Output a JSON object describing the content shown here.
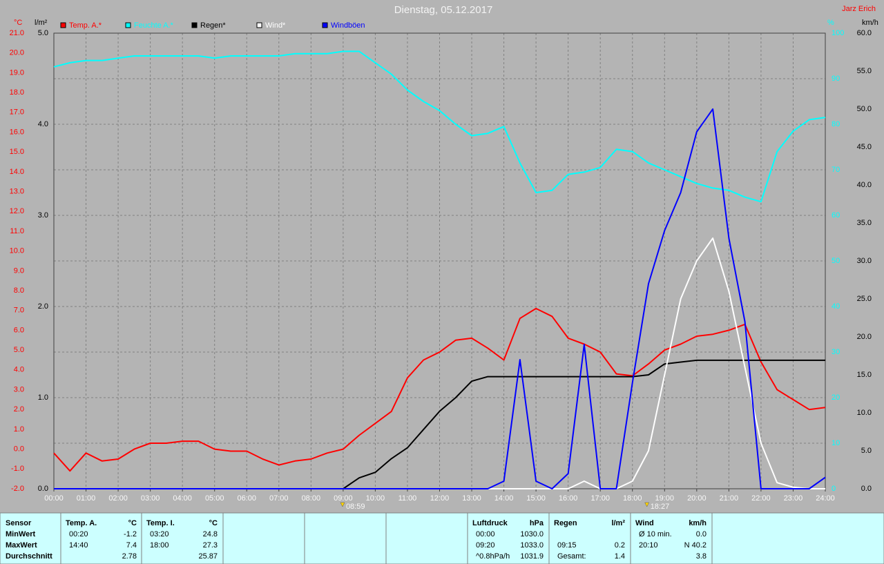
{
  "chart_data": {
    "type": "line",
    "title": "Dienstag, 05.12.2017",
    "author": "Jarz Erich",
    "grid": true,
    "x": [
      0,
      0.5,
      1,
      1.5,
      2,
      2.5,
      3,
      3.5,
      4,
      4.5,
      5,
      5.5,
      6,
      6.5,
      7,
      7.5,
      8,
      8.5,
      9,
      9.5,
      10,
      10.5,
      11,
      11.5,
      12,
      12.5,
      13,
      13.5,
      14,
      14.5,
      15,
      15.5,
      16,
      16.5,
      17,
      17.5,
      18,
      18.5,
      19,
      19.5,
      20,
      20.5,
      21,
      21.5,
      22,
      22.5,
      23,
      23.5,
      24
    ],
    "xlim": [
      0,
      24
    ],
    "xticks": [
      {
        "value": 0,
        "label": "00:00"
      },
      {
        "value": 1,
        "label": "01:00"
      },
      {
        "value": 2,
        "label": "02:00"
      },
      {
        "value": 3,
        "label": "03:00"
      },
      {
        "value": 4,
        "label": "04:00"
      },
      {
        "value": 5,
        "label": "05:00"
      },
      {
        "value": 6,
        "label": "06:00"
      },
      {
        "value": 7,
        "label": "07:00"
      },
      {
        "value": 8,
        "label": "08:00"
      },
      {
        "value": 9,
        "label": "09:00"
      },
      {
        "value": 10,
        "label": "10:00"
      },
      {
        "value": 11,
        "label": "11:00"
      },
      {
        "value": 12,
        "label": "12:00"
      },
      {
        "value": 13,
        "label": "13:00"
      },
      {
        "value": 14,
        "label": "14:00"
      },
      {
        "value": 15,
        "label": "15:00"
      },
      {
        "value": 16,
        "label": "16:00"
      },
      {
        "value": 17,
        "label": "17:00"
      },
      {
        "value": 18,
        "label": "18:00"
      },
      {
        "value": 19,
        "label": "19:00"
      },
      {
        "value": 20,
        "label": "20:00"
      },
      {
        "value": 21,
        "label": "21:00"
      },
      {
        "value": 22,
        "label": "22:00"
      },
      {
        "value": 23,
        "label": "23:00"
      },
      {
        "value": 24,
        "label": "24:00"
      }
    ],
    "y_axes": [
      {
        "label": "°C",
        "color": "#ff0000",
        "lim": [
          -2,
          21
        ],
        "ticks": [
          {
            "value": -2,
            "label": "-2.0"
          },
          {
            "value": -1,
            "label": "-1.0"
          },
          {
            "value": 0,
            "label": "0.0"
          },
          {
            "value": 1,
            "label": "1.0"
          },
          {
            "value": 2,
            "label": "2.0"
          },
          {
            "value": 3,
            "label": "3.0"
          },
          {
            "value": 4,
            "label": "4.0"
          },
          {
            "value": 5,
            "label": "5.0"
          },
          {
            "value": 6,
            "label": "6.0"
          },
          {
            "value": 7,
            "label": "7.0"
          },
          {
            "value": 8,
            "label": "8.0"
          },
          {
            "value": 9,
            "label": "9.0"
          },
          {
            "value": 10,
            "label": "10.0"
          },
          {
            "value": 11,
            "label": "11.0"
          },
          {
            "value": 12,
            "label": "12.0"
          },
          {
            "value": 13,
            "label": "13.0"
          },
          {
            "value": 14,
            "label": "14.0"
          },
          {
            "value": 15,
            "label": "15.0"
          },
          {
            "value": 16,
            "label": "16.0"
          },
          {
            "value": 17,
            "label": "17.0"
          },
          {
            "value": 18,
            "label": "18.0"
          },
          {
            "value": 19,
            "label": "19.0"
          },
          {
            "value": 20,
            "label": "20.0"
          },
          {
            "value": 21,
            "label": "21.0"
          }
        ]
      },
      {
        "label": "l/m²",
        "color": "#000000",
        "lim": [
          0,
          5
        ],
        "ticks": [
          {
            "value": 0,
            "label": "0.0"
          },
          {
            "value": 1,
            "label": "1.0"
          },
          {
            "value": 2,
            "label": "2.0"
          },
          {
            "value": 3,
            "label": "3.0"
          },
          {
            "value": 4,
            "label": "4.0"
          },
          {
            "value": 5,
            "label": "5.0"
          }
        ]
      },
      {
        "label": "%",
        "color": "#00ffff",
        "lim": [
          0,
          100
        ],
        "ticks": [
          0,
          10,
          20,
          30,
          40,
          50,
          60,
          70,
          80,
          90,
          100
        ]
      },
      {
        "label": "km/h",
        "color": "#000000",
        "lim": [
          0,
          60
        ],
        "ticks": [
          {
            "value": 0,
            "label": "0.0"
          },
          {
            "value": 5,
            "label": "5.0"
          },
          {
            "value": 10,
            "label": "10.0"
          },
          {
            "value": 15,
            "label": "15.0"
          },
          {
            "value": 20,
            "label": "20.0"
          },
          {
            "value": 25,
            "label": "25.0"
          },
          {
            "value": 30,
            "label": "30.0"
          },
          {
            "value": 35,
            "label": "35.0"
          },
          {
            "value": 40,
            "label": "40.0"
          },
          {
            "value": 45,
            "label": "45.0"
          },
          {
            "value": 50,
            "label": "50.0"
          },
          {
            "value": 55,
            "label": "55.0"
          },
          {
            "value": 60,
            "label": "60.0"
          }
        ]
      }
    ],
    "series": [
      {
        "name": "Temp. A.*",
        "color": "#ff0000",
        "axis": 0,
        "values": [
          -0.2,
          -1.1,
          -0.2,
          -0.6,
          -0.5,
          0.0,
          0.3,
          0.3,
          0.4,
          0.4,
          0.0,
          -0.1,
          -0.1,
          -0.5,
          -0.8,
          -0.6,
          -0.5,
          -0.2,
          0.0,
          0.7,
          1.3,
          1.9,
          3.6,
          4.5,
          4.9,
          5.5,
          5.6,
          5.1,
          4.5,
          6.6,
          7.1,
          6.7,
          5.6,
          5.3,
          4.9,
          3.8,
          3.7,
          4.3,
          5.0,
          5.3,
          5.7,
          5.8,
          6.0,
          6.3,
          4.4,
          3.0,
          2.5,
          2.0,
          2.1
        ]
      },
      {
        "name": "Feuchte A.*",
        "color": "#00ffff",
        "axis": 2,
        "values": [
          92.6,
          93.5,
          94,
          94,
          94.5,
          95,
          95,
          95,
          95,
          95,
          94.5,
          95,
          95,
          95,
          95,
          95.5,
          95.5,
          95.5,
          96,
          96,
          93.5,
          91,
          87.5,
          85,
          83,
          80,
          77.5,
          78,
          79.5,
          71.5,
          65,
          65.5,
          69,
          69.5,
          70.5,
          74.5,
          74,
          71.5,
          70,
          68.5,
          67,
          66,
          65.5,
          64,
          63,
          74,
          78.5,
          81,
          81.5
        ]
      },
      {
        "name": "Regen*",
        "color": "#000000",
        "axis": 1,
        "values": [
          0,
          0,
          0,
          0,
          0,
          0,
          0,
          0,
          0,
          0,
          0,
          0,
          0,
          0,
          0,
          0,
          0,
          0,
          0,
          0.12,
          0.18,
          0.33,
          0.45,
          0.65,
          0.85,
          1.0,
          1.18,
          1.23,
          1.23,
          1.23,
          1.23,
          1.23,
          1.23,
          1.23,
          1.23,
          1.23,
          1.23,
          1.25,
          1.37,
          1.39,
          1.41,
          1.41,
          1.41,
          1.41,
          1.41,
          1.41,
          1.41,
          1.41,
          1.41
        ]
      },
      {
        "name": "Wind*",
        "color": "#ffffff",
        "axis": 3,
        "values": [
          0,
          0,
          0,
          0,
          0,
          0,
          0,
          0,
          0,
          0,
          0,
          0,
          0,
          0,
          0,
          0,
          0,
          0,
          0,
          0,
          0,
          0,
          0,
          0,
          0,
          0,
          0,
          0,
          0,
          0,
          0,
          0,
          0,
          1,
          0,
          0,
          1,
          5,
          15,
          25,
          30,
          33,
          26,
          16,
          6,
          0.8,
          0.2,
          0,
          0
        ]
      },
      {
        "name": "Windböen",
        "color": "#0000ff",
        "axis": 3,
        "values": [
          0,
          0,
          0,
          0,
          0,
          0,
          0,
          0,
          0,
          0,
          0,
          0,
          0,
          0,
          0,
          0,
          0,
          0,
          0,
          0,
          0,
          0,
          0,
          0,
          0,
          0,
          0,
          0,
          1,
          17,
          1,
          0,
          2,
          19,
          0,
          0,
          14,
          27,
          34,
          39,
          47,
          50,
          33,
          22,
          0,
          0,
          0,
          0,
          1.5
        ]
      }
    ],
    "annotations": [
      {
        "x": 8.98,
        "label": "08:59"
      },
      {
        "x": 18.45,
        "label": "18:27"
      }
    ],
    "table": {
      "sensor": {
        "header": "Sensor",
        "rows": [
          "MinWert",
          "MaxWert",
          "Durchschnitt"
        ]
      },
      "columns": [
        {
          "header": "Temp. A.",
          "unit": "°C",
          "rows": [
            [
              "00:20",
              "-1.2"
            ],
            [
              "14:40",
              "7.4"
            ],
            [
              null,
              "2.78"
            ]
          ]
        },
        {
          "header": "Temp. I.",
          "unit": "°C",
          "rows": [
            [
              "03:20",
              "24.8"
            ],
            [
              "18:00",
              "27.3"
            ],
            [
              null,
              "25.87"
            ]
          ]
        },
        {
          "header": "Luftdruck",
          "unit": "hPa",
          "rows": [
            [
              "00:00",
              "1030.0"
            ],
            [
              "09:20",
              "1033.0"
            ],
            [
              "^0.8hPa/h",
              "1031.9"
            ]
          ]
        },
        {
          "header": "Regen",
          "unit": "l/m²",
          "rows": [
            [
              null,
              null
            ],
            [
              "09:15",
              "0.2"
            ],
            [
              "Gesamt:",
              "1.4"
            ]
          ]
        },
        {
          "header": "Wind",
          "unit": "km/h",
          "rows": [
            [
              "Ø 10 min.",
              "0.0"
            ],
            [
              "20:10",
              "N 40.2"
            ],
            [
              null,
              "3.8"
            ]
          ]
        }
      ]
    }
  }
}
